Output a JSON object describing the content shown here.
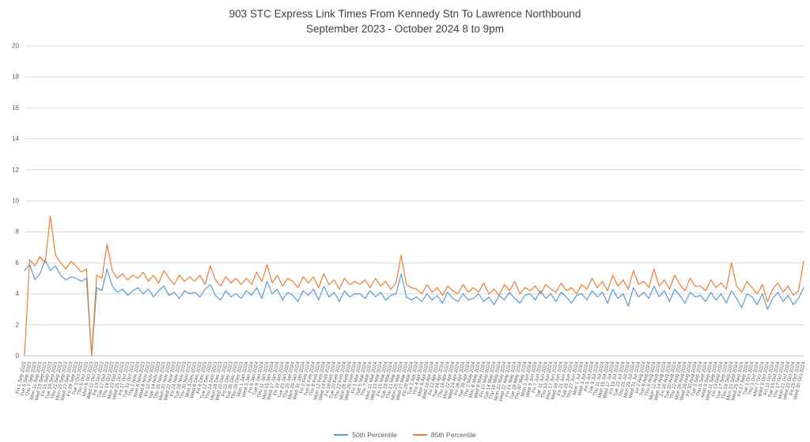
{
  "header": {
    "title": "903 STC Express Link Times From Kennedy Stn To Lawrence Northbound",
    "subtitle": "September 2023 - October 2024 8 to 9pm"
  },
  "legend": [
    {
      "label": "50th Percentile",
      "color": "#5B9BD5"
    },
    {
      "label": "85th Percentile",
      "color": "#ED7D31"
    }
  ],
  "colors": {
    "series_50th": "#5B9BD5",
    "series_85th": "#ED7D31",
    "gridline": "#D9D9D9",
    "axis_line": "#BFBFBF",
    "tick_text": "#595959",
    "title_text": "#404040",
    "background": "#FFFFFF"
  },
  "chart_data": {
    "type": "line",
    "title": "903 STC Express Link Times From Kennedy Stn To Lawrence Northbound",
    "subtitle": "September 2023 - October 2024 8 to 9pm",
    "xlabel": "",
    "ylabel": "",
    "ylim": [
      0,
      20
    ],
    "ytick_step": 2,
    "grid": true,
    "legend_position": "bottom",
    "x": [
      "Fri 1 Sep 2023",
      "Tue 5 Sep 2023",
      "Thu 7 Sep 2023",
      "Mon 11 Sep 2023",
      "Wed 13 Sep 2023",
      "Fri 15 Sep 2023",
      "Tue 19 Sep 2023",
      "Thu 21 Sep 2023",
      "Mon 25 Sep 2023",
      "Wed 27 Sep 2023",
      "Fri 29 Sep 2023",
      "Tue 3 Oct 2023",
      "Thu 5 Oct 2023",
      "Mon 9 Oct 2023",
      "Wed 11 Oct 2023",
      "Fri 13 Oct 2023",
      "Tue 17 Oct 2023",
      "Thu 19 Oct 2023",
      "Mon 23 Oct 2023",
      "Wed 25 Oct 2023",
      "Fri 27 Oct 2023",
      "Tue 31 Oct 2023",
      "Thu 2 Nov 2023",
      "Mon 6 Nov 2023",
      "Wed 8 Nov 2023",
      "Fri 10 Nov 2023",
      "Tue 14 Nov 2023",
      "Thu 16 Nov 2023",
      "Mon 20 Nov 2023",
      "Wed 22 Nov 2023",
      "Fri 24 Nov 2023",
      "Tue 28 Nov 2023",
      "Thu 30 Nov 2023",
      "Mon 4 Dec 2023",
      "Wed 6 Dec 2023",
      "Fri 8 Dec 2023",
      "Tue 12 Dec 2023",
      "Thu 14 Dec 2023",
      "Mon 18 Dec 2023",
      "Wed 20 Dec 2023",
      "Fri 22 Dec 2023",
      "Tue 26 Dec 2023",
      "Thu 28 Dec 2023",
      "Mon 1 Jan 2024",
      "Wed 3 Jan 2024",
      "Fri 5 Jan 2024",
      "Tue 9 Jan 2024",
      "Thu 11 Jan 2024",
      "Mon 15 Jan 2024",
      "Wed 17 Jan 2024",
      "Fri 19 Jan 2024",
      "Tue 23 Jan 2024",
      "Thu 25 Jan 2024",
      "Mon 29 Jan 2024",
      "Wed 31 Jan 2024",
      "Fri 2 Feb 2024",
      "Tue 6 Feb 2024",
      "Thu 8 Feb 2024",
      "Mon 12 Feb 2024",
      "Wed 14 Feb 2024",
      "Fri 16 Feb 2024",
      "Tue 20 Feb 2024",
      "Thu 22 Feb 2024",
      "Mon 26 Feb 2024",
      "Wed 28 Feb 2024",
      "Fri 1 Mar 2024",
      "Tue 5 Mar 2024",
      "Thu 7 Mar 2024",
      "Mon 11 Mar 2024",
      "Wed 13 Mar 2024",
      "Fri 15 Mar 2024",
      "Tue 19 Mar 2024",
      "Thu 21 Mar 2024",
      "Mon 25 Mar 2024",
      "Wed 27 Mar 2024",
      "Fri 29 Mar 2024",
      "Tue 2 Apr 2024",
      "Thu 4 Apr 2024",
      "Mon 8 Apr 2024",
      "Wed 10 Apr 2024",
      "Fri 12 Apr 2024",
      "Tue 16 Apr 2024",
      "Thu 18 Apr 2024",
      "Mon 22 Apr 2024",
      "Wed 24 Apr 2024",
      "Fri 26 Apr 2024",
      "Tue 30 Apr 2024",
      "Thu 2 May 2024",
      "Mon 6 May 2024",
      "Wed 8 May 2024",
      "Fri 10 May 2024",
      "Tue 14 May 2024",
      "Thu 16 May 2024",
      "Mon 20 May 2024",
      "Wed 22 May 2024",
      "Fri 24 May 2024",
      "Tue 28 May 2024",
      "Thu 30 May 2024",
      "Mon 3 Jun 2024",
      "Wed 5 Jun 2024",
      "Fri 7 Jun 2024",
      "Tue 11 Jun 2024",
      "Thu 13 Jun 2024",
      "Mon 17 Jun 2024",
      "Wed 19 Jun 2024",
      "Fri 21 Jun 2024",
      "Tue 25 Jun 2024",
      "Thu 27 Jun 2024",
      "Mon 1 Jul 2024",
      "Wed 3 Jul 2024",
      "Fri 5 Jul 2024",
      "Tue 9 Jul 2024",
      "Thu 11 Jul 2024",
      "Mon 15 Jul 2024",
      "Wed 17 Jul 2024",
      "Fri 19 Jul 2024",
      "Tue 23 Jul 2024",
      "Thu 25 Jul 2024",
      "Mon 29 Jul 2024",
      "Wed 31 Jul 2024",
      "Fri 2 Aug 2024",
      "Tue 6 Aug 2024",
      "Thu 8 Aug 2024",
      "Mon 12 Aug 2024",
      "Wed 14 Aug 2024",
      "Fri 16 Aug 2024",
      "Tue 20 Aug 2024",
      "Thu 22 Aug 2024",
      "Mon 26 Aug 2024",
      "Wed 28 Aug 2024",
      "Fri 30 Aug 2024",
      "Tue 3 Sep 2024",
      "Thu 5 Sep 2024",
      "Mon 9 Sep 2024",
      "Wed 11 Sep 2024",
      "Fri 13 Sep 2024",
      "Tue 17 Sep 2024",
      "Thu 19 Sep 2024",
      "Mon 23 Sep 2024",
      "Wed 25 Sep 2024",
      "Fri 27 Sep 2024",
      "Tue 1 Oct 2024",
      "Thu 3 Oct 2024",
      "Mon 7 Oct 2024",
      "Wed 9 Oct 2024",
      "Fri 11 Oct 2024",
      "Tue 15 Oct 2024",
      "Thu 17 Oct 2024",
      "Mon 21 Oct 2024",
      "Wed 23 Oct 2024",
      "Fri 25 Oct 2024",
      "Wed 30 Oct 2024"
    ],
    "series": [
      {
        "name": "50th Percentile",
        "color": "#5B9BD5",
        "values": [
          5.5,
          5.9,
          4.9,
          5.3,
          6.2,
          5.5,
          5.8,
          5.2,
          4.9,
          5.1,
          5.0,
          4.8,
          5.0,
          0,
          4.4,
          4.2,
          5.6,
          4.5,
          4.1,
          4.3,
          3.9,
          4.2,
          4.4,
          4.0,
          4.3,
          3.8,
          4.2,
          4.5,
          3.9,
          4.1,
          3.7,
          4.2,
          4.0,
          4.1,
          3.8,
          4.3,
          4.6,
          3.9,
          3.6,
          4.2,
          3.8,
          4.0,
          3.7,
          4.2,
          3.9,
          4.4,
          3.7,
          4.8,
          4.0,
          4.3,
          3.6,
          4.1,
          3.9,
          3.5,
          4.2,
          3.9,
          4.3,
          3.6,
          4.5,
          3.8,
          4.1,
          3.5,
          4.2,
          3.8,
          4.0,
          4.0,
          3.7,
          4.2,
          3.8,
          4.1,
          3.6,
          3.9,
          4.0,
          5.3,
          3.8,
          3.6,
          3.8,
          3.5,
          4.0,
          3.6,
          3.9,
          3.4,
          4.1,
          3.7,
          3.5,
          4.0,
          3.6,
          3.7,
          4.0,
          3.5,
          3.8,
          3.3,
          3.9,
          3.6,
          4.1,
          3.7,
          3.4,
          3.9,
          4.0,
          3.6,
          4.2,
          3.7,
          4.0,
          3.5,
          4.1,
          3.8,
          3.4,
          3.9,
          4.0,
          3.6,
          4.2,
          3.8,
          4.1,
          3.4,
          4.3,
          3.7,
          4.0,
          3.2,
          4.4,
          3.8,
          4.1,
          3.7,
          4.5,
          3.8,
          4.2,
          3.5,
          4.3,
          3.9,
          3.4,
          4.1,
          3.8,
          3.9,
          3.5,
          4.1,
          3.6,
          4.0,
          3.4,
          4.2,
          3.7,
          3.1,
          4.0,
          3.8,
          3.3,
          4.0,
          3.0,
          3.7,
          4.1,
          3.5,
          3.9,
          3.3,
          3.7,
          4.4
        ]
      },
      {
        "name": "85th Percentile",
        "color": "#ED7D31",
        "values": [
          0,
          6.2,
          5.8,
          6.4,
          6.0,
          9.0,
          6.5,
          6.0,
          5.6,
          6.1,
          5.8,
          5.4,
          5.6,
          0,
          5.2,
          5.0,
          7.2,
          5.5,
          5.0,
          5.3,
          4.9,
          5.2,
          5.0,
          5.4,
          4.8,
          5.2,
          4.7,
          5.5,
          5.0,
          4.6,
          5.2,
          4.8,
          5.1,
          4.8,
          5.2,
          4.6,
          5.8,
          4.9,
          4.5,
          5.1,
          4.7,
          5.0,
          4.6,
          5.0,
          4.6,
          5.4,
          4.8,
          5.9,
          4.7,
          5.2,
          4.5,
          5.0,
          4.8,
          4.4,
          5.1,
          4.7,
          5.1,
          4.4,
          5.3,
          4.6,
          4.9,
          4.3,
          5.0,
          4.6,
          4.8,
          4.6,
          4.9,
          4.4,
          5.0,
          4.5,
          4.8,
          4.3,
          4.7,
          6.5,
          4.6,
          4.4,
          4.3,
          4.0,
          4.6,
          4.1,
          4.4,
          3.9,
          4.5,
          4.2,
          4.0,
          4.6,
          4.1,
          4.4,
          4.1,
          4.7,
          4.0,
          4.3,
          3.9,
          4.6,
          4.2,
          4.8,
          4.0,
          4.4,
          4.2,
          4.5,
          4.0,
          4.6,
          4.3,
          4.1,
          4.7,
          4.2,
          4.4,
          4.0,
          4.6,
          4.3,
          5.0,
          4.4,
          4.8,
          4.2,
          5.2,
          4.5,
          4.9,
          4.3,
          5.5,
          4.6,
          4.8,
          4.4,
          5.6,
          4.5,
          4.9,
          4.3,
          5.2,
          4.6,
          4.2,
          5.0,
          4.5,
          4.5,
          4.2,
          4.9,
          4.4,
          4.7,
          4.3,
          6.0,
          4.5,
          4.1,
          4.8,
          4.4,
          4.0,
          4.6,
          3.5,
          4.3,
          4.7,
          4.1,
          4.5,
          3.9,
          4.2,
          6.1
        ]
      }
    ]
  }
}
